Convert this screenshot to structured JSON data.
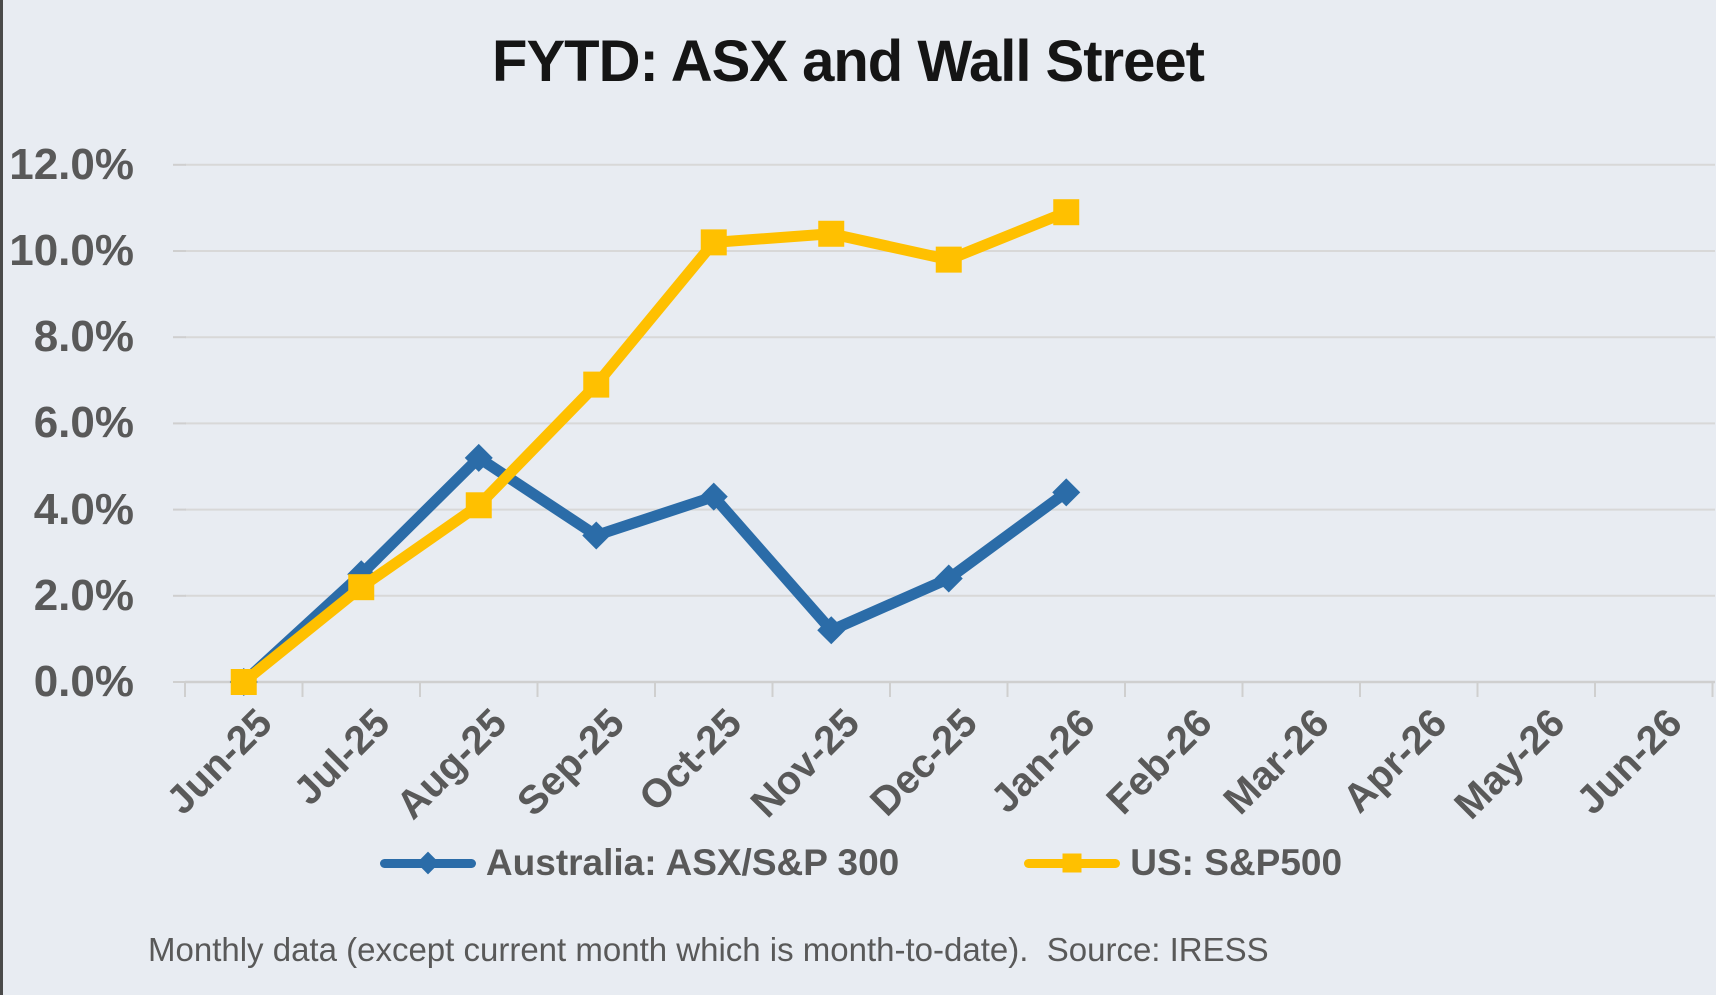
{
  "footnote": "Monthly data (except current month which is month-to-date).  Source: IRESS",
  "colors": {
    "background": "#E8ECF2",
    "gridline": "#D8D8D8",
    "axis_line": "#CFCFCF",
    "label_text": "#595959",
    "title_text": "#151515",
    "australia_blue": "#2B6CA8",
    "us_gold": "#FFC000"
  },
  "chart_data": {
    "type": "line",
    "title": "FYTD: ASX and Wall Street",
    "xlabel": "",
    "ylabel": "",
    "categories": [
      "Jun-25",
      "Jul-25",
      "Aug-25",
      "Sep-25",
      "Oct-25",
      "Nov-25",
      "Dec-25",
      "Jan-26",
      "Feb-26",
      "Mar-26",
      "Apr-26",
      "May-26",
      "Jun-26"
    ],
    "series": [
      {
        "name": "Australia: ASX/S&P 300",
        "color": "#2B6CA8",
        "marker": "diamond",
        "values": [
          0.0,
          2.5,
          5.2,
          3.4,
          4.3,
          1.2,
          2.4,
          4.4
        ]
      },
      {
        "name": "US: S&P500",
        "color": "#FFC000",
        "marker": "square",
        "values": [
          0.0,
          2.2,
          4.1,
          6.9,
          10.2,
          10.4,
          9.8,
          10.9
        ]
      }
    ],
    "y_ticks": [
      "0.0%",
      "2.0%",
      "4.0%",
      "6.0%",
      "8.0%",
      "10.0%",
      "12.0%"
    ],
    "ylim": [
      0,
      12
    ],
    "y_step": 2,
    "grid": true,
    "legend_position": "bottom",
    "note": "Monthly data (except current month which is month-to-date).  Source: IRESS"
  }
}
